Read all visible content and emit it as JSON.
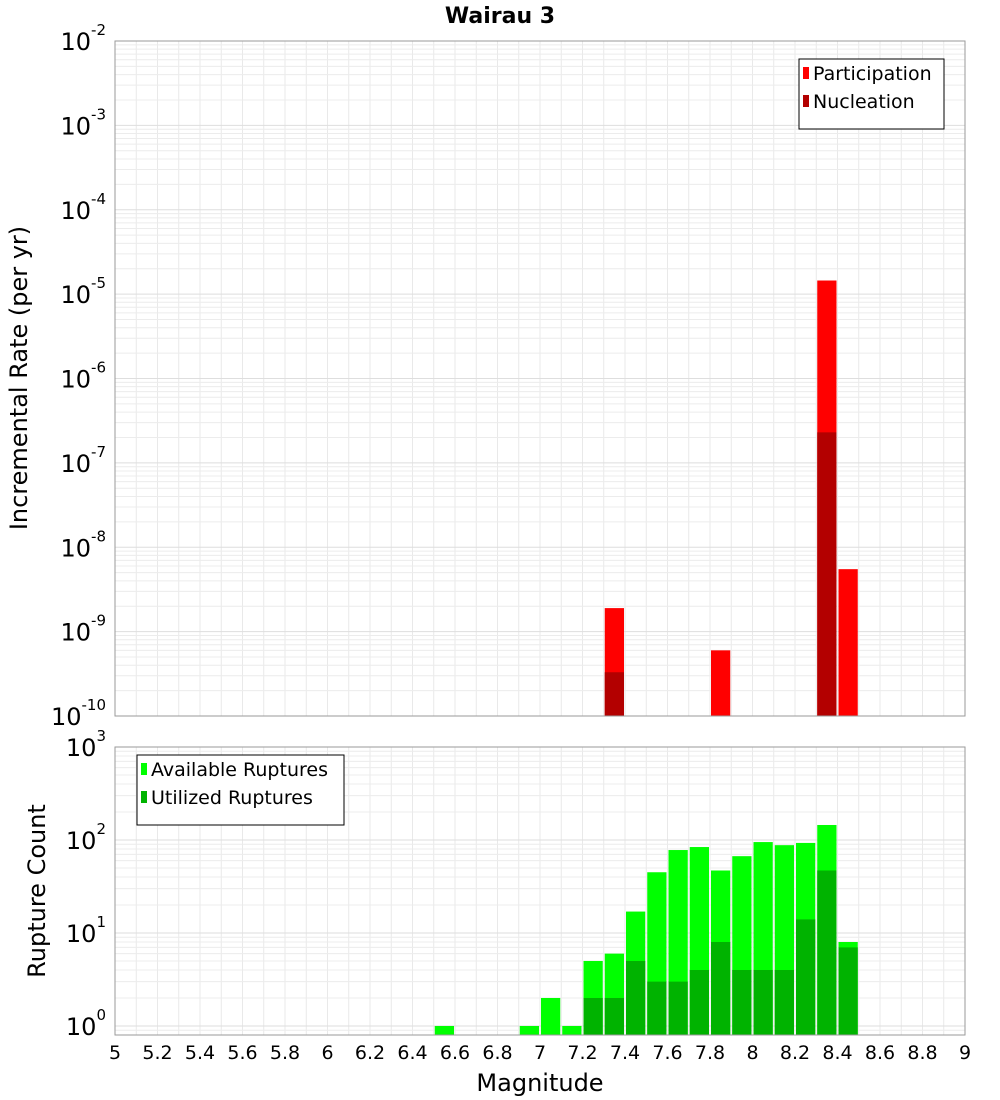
{
  "title": "Wairau 3",
  "xlabel": "Magnitude",
  "x_ticks": [
    "5",
    "5.2",
    "5.4",
    "5.6",
    "5.8",
    "6",
    "6.2",
    "6.4",
    "6.6",
    "6.8",
    "7",
    "7.2",
    "7.4",
    "7.6",
    "7.8",
    "8",
    "8.2",
    "8.4",
    "8.6",
    "8.8",
    "9"
  ],
  "chart_data": [
    {
      "type": "bar",
      "title": "Wairau 3",
      "xlabel": "Magnitude",
      "ylabel": "Incremental Rate (per yr)",
      "yscale": "log",
      "xlim": [
        5,
        9
      ],
      "ylim": [
        1e-10,
        0.01
      ],
      "bin_width": 0.1,
      "y_ticks": [
        {
          "base": "10",
          "exp": "-2"
        },
        {
          "base": "10",
          "exp": "-3"
        },
        {
          "base": "10",
          "exp": "-4"
        },
        {
          "base": "10",
          "exp": "-5"
        },
        {
          "base": "10",
          "exp": "-6"
        },
        {
          "base": "10",
          "exp": "-7"
        },
        {
          "base": "10",
          "exp": "-8"
        },
        {
          "base": "10",
          "exp": "-9"
        },
        {
          "base": "10",
          "exp": "-10"
        }
      ],
      "legend_position": "top-right",
      "legend": [
        {
          "label": "Participation",
          "color": "#ff0000"
        },
        {
          "label": "Nucleation",
          "color": "#b30000"
        }
      ],
      "series": [
        {
          "name": "Participation",
          "color": "#ff0000",
          "x": [
            7.35,
            7.85,
            8.35,
            8.45
          ],
          "values": [
            1.9e-09,
            6e-10,
            1.45e-05,
            5.5e-09
          ]
        },
        {
          "name": "Nucleation",
          "color": "#b30000",
          "x": [
            7.35,
            8.35
          ],
          "values": [
            3.3e-10,
            2.3e-07
          ]
        }
      ],
      "grid": true
    },
    {
      "type": "bar",
      "xlabel": "Magnitude",
      "ylabel": "Rupture Count",
      "yscale": "log",
      "xlim": [
        5,
        9
      ],
      "ylim": [
        0.8,
        1000
      ],
      "bin_width": 0.1,
      "y_ticks": [
        {
          "base": "10",
          "exp": "3"
        },
        {
          "base": "10",
          "exp": "2"
        },
        {
          "base": "10",
          "exp": "1"
        },
        {
          "base": "10",
          "exp": "0"
        }
      ],
      "legend_position": "top-left",
      "legend": [
        {
          "label": "Available Ruptures",
          "color": "#00ff00"
        },
        {
          "label": "Utilized Ruptures",
          "color": "#00b300"
        }
      ],
      "series": [
        {
          "name": "Available Ruptures",
          "color": "#00ff00",
          "x": [
            6.55,
            6.95,
            7.05,
            7.15,
            7.25,
            7.35,
            7.45,
            7.55,
            7.65,
            7.75,
            7.85,
            7.95,
            8.05,
            8.15,
            8.25,
            8.35,
            8.45
          ],
          "values": [
            1,
            1,
            2,
            1,
            5,
            6,
            17,
            45,
            78,
            84,
            47,
            67,
            95,
            88,
            93,
            145,
            8
          ]
        },
        {
          "name": "Utilized Ruptures",
          "color": "#00b300",
          "x": [
            7.25,
            7.35,
            7.45,
            7.55,
            7.65,
            7.75,
            7.85,
            7.95,
            8.05,
            8.15,
            8.25,
            8.35,
            8.45
          ],
          "values": [
            2,
            2,
            5,
            3,
            3,
            4,
            8,
            4,
            4,
            4,
            14,
            47,
            7
          ]
        }
      ],
      "grid": true
    }
  ]
}
